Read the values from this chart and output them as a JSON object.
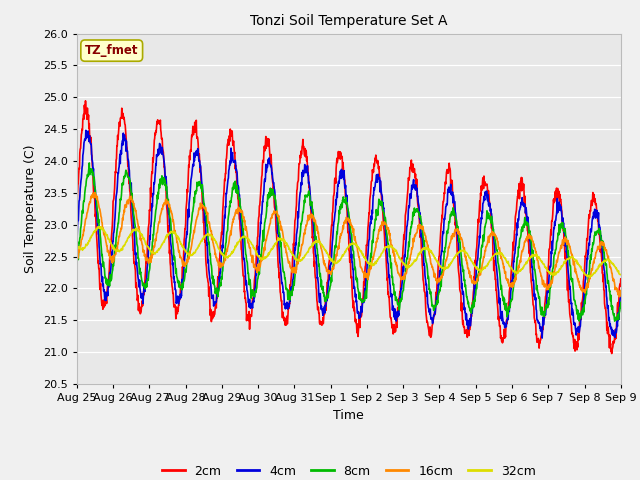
{
  "title": "Tonzi Soil Temperature Set A",
  "xlabel": "Time",
  "ylabel": "Soil Temperature (C)",
  "ylim": [
    20.5,
    26.0
  ],
  "fig_bg_color": "#f0f0f0",
  "plot_bg_color": "#e8e8e8",
  "legend_label": "TZ_fmet",
  "series": {
    "2cm": {
      "color": "#ff0000",
      "linewidth": 1.2
    },
    "4cm": {
      "color": "#0000dd",
      "linewidth": 1.2
    },
    "8cm": {
      "color": "#00bb00",
      "linewidth": 1.2
    },
    "16cm": {
      "color": "#ff8800",
      "linewidth": 1.2
    },
    "32cm": {
      "color": "#dddd00",
      "linewidth": 1.2
    }
  },
  "yticks": [
    20.5,
    21.0,
    21.5,
    22.0,
    22.5,
    23.0,
    23.5,
    24.0,
    24.5,
    25.0,
    25.5,
    26.0
  ],
  "xtick_labels": [
    "Aug 25",
    "Aug 26",
    "Aug 27",
    "Aug 28",
    "Aug 29",
    "Aug 30",
    "Aug 31",
    "Sep 1",
    "Sep 2",
    "Sep 3",
    "Sep 4",
    "Sep 5",
    "Sep 6",
    "Sep 7",
    "Sep 8",
    "Sep 9"
  ],
  "grid_color": "#ffffff",
  "n_days": 15.0,
  "samples_per_day": 96,
  "period": 1.0,
  "trend_start": [
    23.3,
    23.2,
    23.0,
    23.0,
    22.8
  ],
  "trend_end": [
    22.2,
    22.2,
    22.2,
    22.3,
    22.3
  ],
  "amplitude": [
    1.55,
    1.25,
    0.9,
    0.5,
    0.18
  ],
  "phase_lag": [
    0.0,
    0.05,
    0.12,
    0.22,
    0.38
  ]
}
